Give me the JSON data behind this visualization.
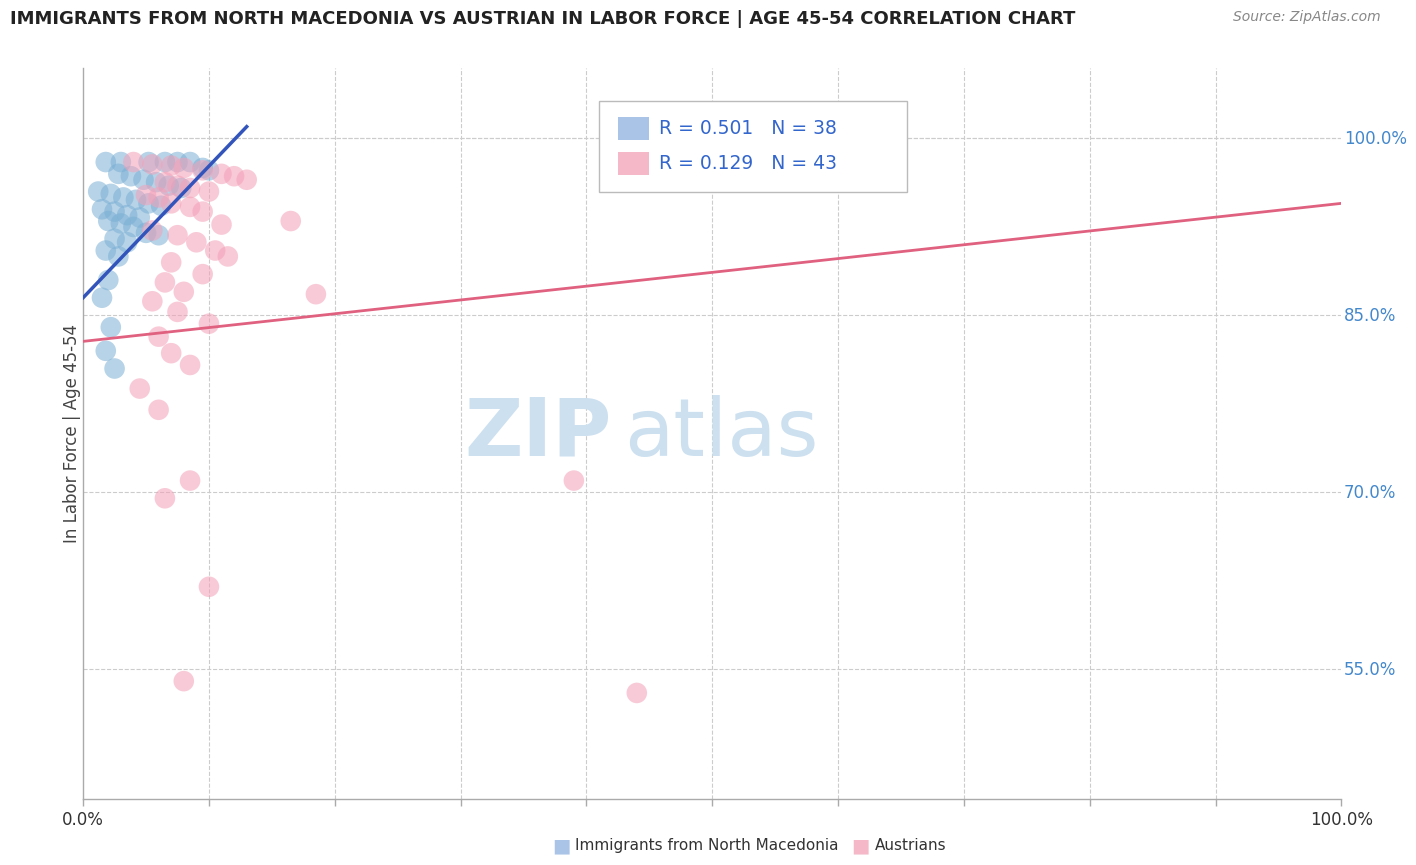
{
  "title": "IMMIGRANTS FROM NORTH MACEDONIA VS AUSTRIAN IN LABOR FORCE | AGE 45-54 CORRELATION CHART",
  "source_text": "Source: ZipAtlas.com",
  "ylabel": "In Labor Force | Age 45-54",
  "xlim": [
    0.0,
    1.0
  ],
  "ylim": [
    0.44,
    1.06
  ],
  "y_tick_vals_right": [
    1.0,
    0.85,
    0.7,
    0.55
  ],
  "y_tick_labels_right": [
    "100.0%",
    "85.0%",
    "70.0%",
    "55.0%"
  ],
  "legend_r1": "R = 0.501   N = 38",
  "legend_r2": "R = 0.129   N = 43",
  "blue_scatter": [
    [
      0.018,
      0.98
    ],
    [
      0.03,
      0.98
    ],
    [
      0.052,
      0.98
    ],
    [
      0.065,
      0.98
    ],
    [
      0.075,
      0.98
    ],
    [
      0.085,
      0.98
    ],
    [
      0.095,
      0.975
    ],
    [
      0.1,
      0.973
    ],
    [
      0.028,
      0.97
    ],
    [
      0.038,
      0.968
    ],
    [
      0.048,
      0.965
    ],
    [
      0.058,
      0.963
    ],
    [
      0.068,
      0.96
    ],
    [
      0.078,
      0.958
    ],
    [
      0.012,
      0.955
    ],
    [
      0.022,
      0.953
    ],
    [
      0.032,
      0.95
    ],
    [
      0.042,
      0.948
    ],
    [
      0.052,
      0.945
    ],
    [
      0.062,
      0.943
    ],
    [
      0.015,
      0.94
    ],
    [
      0.025,
      0.938
    ],
    [
      0.035,
      0.935
    ],
    [
      0.045,
      0.933
    ],
    [
      0.02,
      0.93
    ],
    [
      0.03,
      0.928
    ],
    [
      0.04,
      0.925
    ],
    [
      0.05,
      0.92
    ],
    [
      0.06,
      0.918
    ],
    [
      0.025,
      0.915
    ],
    [
      0.035,
      0.912
    ],
    [
      0.018,
      0.905
    ],
    [
      0.028,
      0.9
    ],
    [
      0.02,
      0.88
    ],
    [
      0.015,
      0.865
    ],
    [
      0.022,
      0.84
    ],
    [
      0.018,
      0.82
    ],
    [
      0.025,
      0.805
    ]
  ],
  "pink_scatter": [
    [
      0.04,
      0.98
    ],
    [
      0.055,
      0.978
    ],
    [
      0.07,
      0.977
    ],
    [
      0.08,
      0.975
    ],
    [
      0.095,
      0.973
    ],
    [
      0.11,
      0.97
    ],
    [
      0.12,
      0.968
    ],
    [
      0.13,
      0.965
    ],
    [
      0.065,
      0.963
    ],
    [
      0.075,
      0.96
    ],
    [
      0.085,
      0.958
    ],
    [
      0.1,
      0.955
    ],
    [
      0.05,
      0.952
    ],
    [
      0.06,
      0.95
    ],
    [
      0.07,
      0.945
    ],
    [
      0.085,
      0.942
    ],
    [
      0.095,
      0.938
    ],
    [
      0.165,
      0.93
    ],
    [
      0.11,
      0.927
    ],
    [
      0.055,
      0.922
    ],
    [
      0.075,
      0.918
    ],
    [
      0.09,
      0.912
    ],
    [
      0.105,
      0.905
    ],
    [
      0.115,
      0.9
    ],
    [
      0.07,
      0.895
    ],
    [
      0.095,
      0.885
    ],
    [
      0.065,
      0.878
    ],
    [
      0.08,
      0.87
    ],
    [
      0.055,
      0.862
    ],
    [
      0.075,
      0.853
    ],
    [
      0.1,
      0.843
    ],
    [
      0.06,
      0.832
    ],
    [
      0.07,
      0.818
    ],
    [
      0.085,
      0.808
    ],
    [
      0.045,
      0.788
    ],
    [
      0.06,
      0.77
    ],
    [
      0.085,
      0.71
    ],
    [
      0.065,
      0.695
    ],
    [
      0.1,
      0.62
    ],
    [
      0.39,
      0.71
    ],
    [
      0.185,
      0.868
    ],
    [
      0.08,
      0.54
    ],
    [
      0.44,
      0.53
    ]
  ],
  "blue_line_x": [
    0.0,
    0.13
  ],
  "blue_line_y": [
    0.865,
    1.01
  ],
  "pink_line_x": [
    0.0,
    1.0
  ],
  "pink_line_y": [
    0.828,
    0.945
  ],
  "blue_scatter_color": "#7bafd4",
  "pink_scatter_color": "#f4a0b8",
  "blue_line_color": "#3355bb",
  "pink_line_color": "#e06080",
  "watermark_zip": "ZIP",
  "watermark_atlas": "atlas",
  "watermark_color": "#cce0f0",
  "background_color": "#ffffff",
  "grid_color": "#cccccc",
  "legend_blue_color": "#aac4e8",
  "legend_pink_color": "#f4b8c8",
  "stat_color": "#3366cc",
  "title_color": "#222222",
  "ylabel_color": "#444444",
  "right_tick_color": "#4488cc",
  "bottom_label_color": "#333333"
}
